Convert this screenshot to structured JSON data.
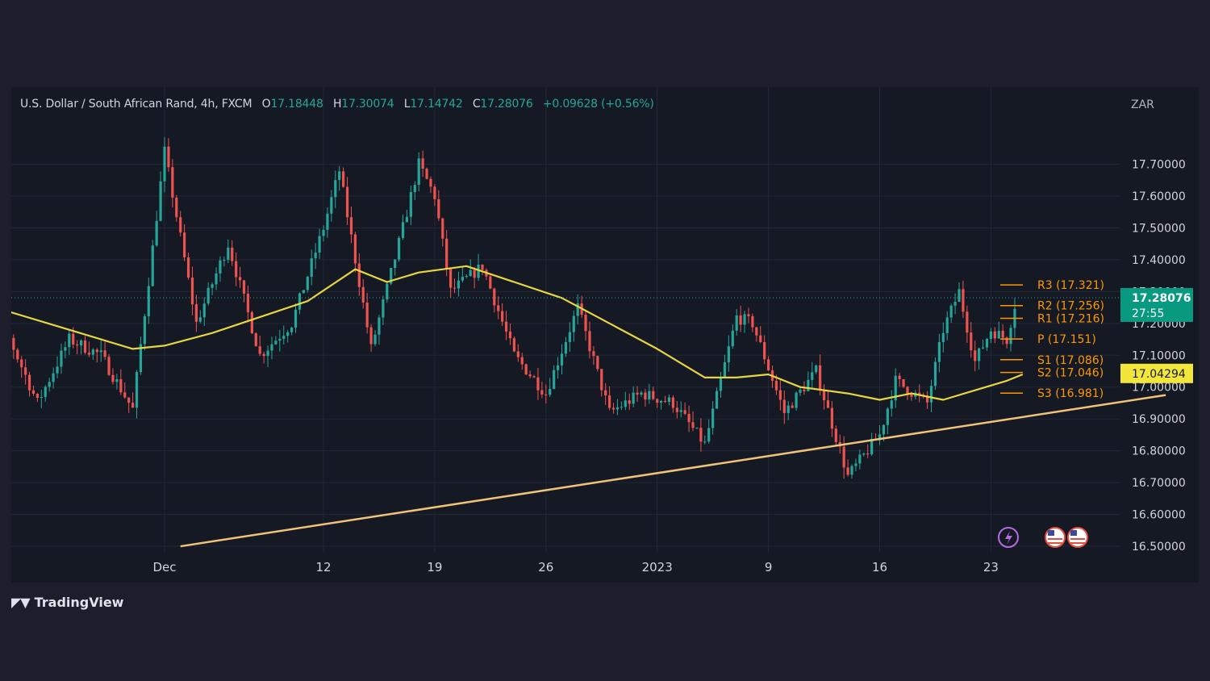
{
  "legend": {
    "symbol": "U.S. Dollar / South African Rand, 4h, FXCM",
    "open_label": "O",
    "open": "17.18448",
    "high_label": "H",
    "high": "17.30074",
    "low_label": "L",
    "low": "17.14742",
    "close_label": "C",
    "close": "17.28076",
    "change": "+0.09628 (+0.56%)"
  },
  "brand": {
    "name": "TradingView"
  },
  "colors": {
    "background": "#151924",
    "page": "#1c1f2b",
    "up": "#26a69a",
    "down": "#ef5350",
    "ma": "#e8d640",
    "trendline": "#f0c27a",
    "pivot": "#ff9800",
    "price_tag": "#089981",
    "ma_tag": "#f3e63a",
    "text": "#b2b5be"
  },
  "chart_data": {
    "type": "candlestick",
    "currency": "ZAR",
    "y_ticks": [
      "17.70000",
      "17.60000",
      "17.50000",
      "17.40000",
      "17.30000",
      "17.20000",
      "17.10000",
      "17.00000",
      "16.90000",
      "16.80000",
      "16.70000",
      "16.60000",
      "16.50000"
    ],
    "ylim": [
      16.49,
      17.79
    ],
    "x_ticks": [
      {
        "label": "Dec",
        "bar": 0
      },
      {
        "label": "12",
        "bar": 10
      },
      {
        "label": "19",
        "bar": 17
      },
      {
        "label": "26",
        "bar": 24
      },
      {
        "label": "2023",
        "bar": 31
      },
      {
        "label": "9",
        "bar": 38
      },
      {
        "label": "16",
        "bar": 45
      },
      {
        "label": "23",
        "bar": 52
      }
    ],
    "bars_per_tick": 7,
    "last_price": {
      "value": 17.28076,
      "label": "17.28076",
      "countdown": "27:55"
    },
    "ma_value": {
      "value": 17.04294,
      "label": "17.04294"
    },
    "pivots": [
      {
        "label": "R3 (17.321)",
        "value": 17.321
      },
      {
        "label": "R2 (17.256)",
        "value": 17.256
      },
      {
        "label": "R1 (17.216)",
        "value": 17.216
      },
      {
        "label": "P (17.151)",
        "value": 17.151
      },
      {
        "label": "S1 (17.086)",
        "value": 17.086
      },
      {
        "label": "S2 (17.046)",
        "value": 17.046
      },
      {
        "label": "S3 (16.981)",
        "value": 16.981
      }
    ],
    "price_path": [
      {
        "bar": -12,
        "price": 17.3
      },
      {
        "bar": -10,
        "price": 17.18
      },
      {
        "bar": -8,
        "price": 16.95
      },
      {
        "bar": -6,
        "price": 17.15
      },
      {
        "bar": -4,
        "price": 17.1
      },
      {
        "bar": -2,
        "price": 16.93
      },
      {
        "bar": 0,
        "price": 17.74
      },
      {
        "bar": 2,
        "price": 17.2
      },
      {
        "bar": 4,
        "price": 17.45
      },
      {
        "bar": 6,
        "price": 17.1
      },
      {
        "bar": 8,
        "price": 17.2
      },
      {
        "bar": 10,
        "price": 17.5
      },
      {
        "bar": 11,
        "price": 17.68
      },
      {
        "bar": 13,
        "price": 17.12
      },
      {
        "bar": 15,
        "price": 17.5
      },
      {
        "bar": 16,
        "price": 17.7
      },
      {
        "bar": 17,
        "price": 17.6
      },
      {
        "bar": 18,
        "price": 17.3
      },
      {
        "bar": 20,
        "price": 17.38
      },
      {
        "bar": 22,
        "price": 17.1
      },
      {
        "bar": 24,
        "price": 16.98
      },
      {
        "bar": 26,
        "price": 17.25
      },
      {
        "bar": 28,
        "price": 16.92
      },
      {
        "bar": 30,
        "price": 16.98
      },
      {
        "bar": 32,
        "price": 16.95
      },
      {
        "bar": 34,
        "price": 16.82
      },
      {
        "bar": 36,
        "price": 17.22
      },
      {
        "bar": 37,
        "price": 17.2
      },
      {
        "bar": 39,
        "price": 16.92
      },
      {
        "bar": 41,
        "price": 17.05
      },
      {
        "bar": 43,
        "price": 16.72
      },
      {
        "bar": 45,
        "price": 16.85
      },
      {
        "bar": 46,
        "price": 17.02
      },
      {
        "bar": 48,
        "price": 16.95
      },
      {
        "bar": 49,
        "price": 17.18
      },
      {
        "bar": 50,
        "price": 17.3
      },
      {
        "bar": 51,
        "price": 17.08
      },
      {
        "bar": 52,
        "price": 17.18
      },
      {
        "bar": 53,
        "price": 17.15
      },
      {
        "bar": 53.6,
        "price": 17.28
      }
    ],
    "ma_path": [
      {
        "bar": -14,
        "price": 17.33
      },
      {
        "bar": -10,
        "price": 17.24
      },
      {
        "bar": -6,
        "price": 17.18
      },
      {
        "bar": -2,
        "price": 17.12
      },
      {
        "bar": 0,
        "price": 17.13
      },
      {
        "bar": 3,
        "price": 17.17
      },
      {
        "bar": 6,
        "price": 17.22
      },
      {
        "bar": 9,
        "price": 17.27
      },
      {
        "bar": 12,
        "price": 17.37
      },
      {
        "bar": 14,
        "price": 17.33
      },
      {
        "bar": 16,
        "price": 17.36
      },
      {
        "bar": 19,
        "price": 17.38
      },
      {
        "bar": 22,
        "price": 17.33
      },
      {
        "bar": 25,
        "price": 17.28
      },
      {
        "bar": 28,
        "price": 17.2
      },
      {
        "bar": 31,
        "price": 17.12
      },
      {
        "bar": 34,
        "price": 17.03
      },
      {
        "bar": 36,
        "price": 17.03
      },
      {
        "bar": 38,
        "price": 17.04
      },
      {
        "bar": 40,
        "price": 17.0
      },
      {
        "bar": 43,
        "price": 16.98
      },
      {
        "bar": 45,
        "price": 16.96
      },
      {
        "bar": 47,
        "price": 16.98
      },
      {
        "bar": 49,
        "price": 16.96
      },
      {
        "bar": 51,
        "price": 16.99
      },
      {
        "bar": 53,
        "price": 17.02
      },
      {
        "bar": 54,
        "price": 17.04
      }
    ],
    "trendline": [
      {
        "bar": 1,
        "price": 16.5
      },
      {
        "bar": 63,
        "price": 16.975
      }
    ]
  }
}
